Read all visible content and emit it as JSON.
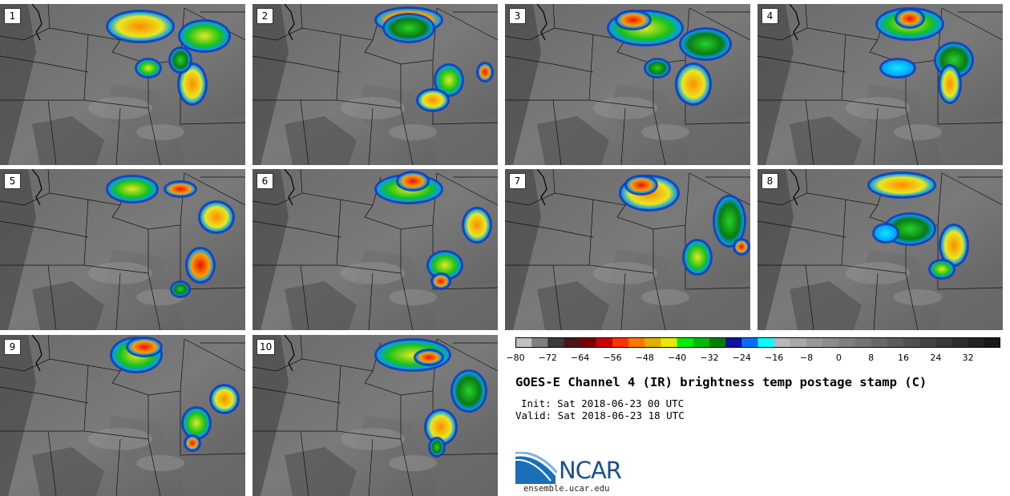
{
  "panels": [
    {
      "label": "1"
    },
    {
      "label": "2"
    },
    {
      "label": "3"
    },
    {
      "label": "4"
    },
    {
      "label": "5"
    },
    {
      "label": "6"
    },
    {
      "label": "7"
    },
    {
      "label": "8"
    },
    {
      "label": "9"
    },
    {
      "label": "10"
    }
  ],
  "colorbar": {
    "colors": [
      "#c0c0c0",
      "#808080",
      "#3a3a3a",
      "#4a1515",
      "#7a0000",
      "#c80000",
      "#ff3300",
      "#ff7700",
      "#e0b000",
      "#e8e800",
      "#00ee00",
      "#00b800",
      "#008000",
      "#1010a0",
      "#0a6cff",
      "#00ffff",
      "#b8b8b8",
      "#a8a8a8",
      "#989898",
      "#8c8c8c",
      "#808080",
      "#747474",
      "#686868",
      "#5c5c5c",
      "#505050",
      "#444444",
      "#383838",
      "#2c2c2c",
      "#222222",
      "#181818"
    ],
    "tick_labels": [
      "−80",
      "−72",
      "−64",
      "−56",
      "−48",
      "−40",
      "−32",
      "−24",
      "−16",
      "−8",
      "0",
      "8",
      "16",
      "24",
      "32"
    ]
  },
  "title": "GOES-E Channel 4 (IR) brightness temp postage stamp (C)",
  "init": "Init: Sat 2018-06-23 00 UTC",
  "valid": "Valid: Sat 2018-06-23 18 UTC",
  "logo_text": "NCAR",
  "site": "ensemble.ucar.edu"
}
